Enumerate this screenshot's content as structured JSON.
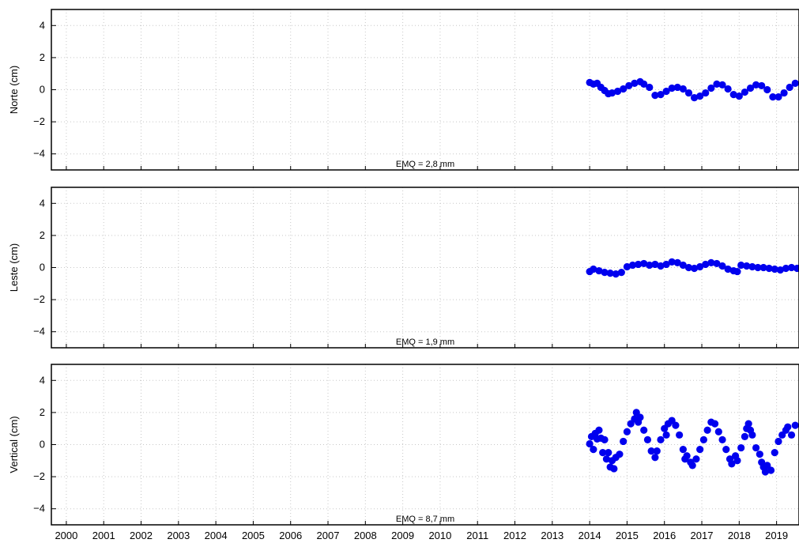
{
  "chart_data": [
    {
      "type": "scatter",
      "ylabel": "Norte (cm)",
      "ylim": [
        -5,
        5
      ],
      "yticks": [
        -4,
        -2,
        0,
        2,
        4
      ],
      "ytick_labels": [
        "−4",
        "−2",
        "0",
        "2",
        "4"
      ],
      "xlim": [
        1999.6,
        2019.6
      ],
      "grid": true,
      "annotation": "EMQ = 2,8 mm",
      "series": [
        {
          "color": "#0000ee",
          "points": [
            [
              2014.0,
              0.45
            ],
            [
              2014.1,
              0.35
            ],
            [
              2014.2,
              0.4
            ],
            [
              2014.3,
              0.15
            ],
            [
              2014.4,
              -0.05
            ],
            [
              2014.5,
              -0.25
            ],
            [
              2014.6,
              -0.2
            ],
            [
              2014.75,
              -0.1
            ],
            [
              2014.9,
              0.05
            ],
            [
              2015.05,
              0.25
            ],
            [
              2015.2,
              0.4
            ],
            [
              2015.35,
              0.5
            ],
            [
              2015.45,
              0.35
            ],
            [
              2015.6,
              0.15
            ],
            [
              2015.75,
              -0.35
            ],
            [
              2015.9,
              -0.3
            ],
            [
              2016.05,
              -0.1
            ],
            [
              2016.2,
              0.1
            ],
            [
              2016.35,
              0.15
            ],
            [
              2016.5,
              0.05
            ],
            [
              2016.65,
              -0.2
            ],
            [
              2016.8,
              -0.5
            ],
            [
              2016.95,
              -0.4
            ],
            [
              2017.1,
              -0.2
            ],
            [
              2017.25,
              0.1
            ],
            [
              2017.4,
              0.35
            ],
            [
              2017.55,
              0.3
            ],
            [
              2017.7,
              0.05
            ],
            [
              2017.85,
              -0.3
            ],
            [
              2018.0,
              -0.4
            ],
            [
              2018.15,
              -0.15
            ],
            [
              2018.3,
              0.1
            ],
            [
              2018.45,
              0.3
            ],
            [
              2018.6,
              0.25
            ],
            [
              2018.75,
              0.0
            ],
            [
              2018.9,
              -0.45
            ],
            [
              2019.05,
              -0.45
            ],
            [
              2019.2,
              -0.2
            ],
            [
              2019.35,
              0.15
            ],
            [
              2019.5,
              0.4
            ]
          ]
        }
      ]
    },
    {
      "type": "scatter",
      "ylabel": "Leste (cm)",
      "ylim": [
        -5,
        5
      ],
      "yticks": [
        -4,
        -2,
        0,
        2,
        4
      ],
      "ytick_labels": [
        "−4",
        "−2",
        "0",
        "2",
        "4"
      ],
      "xlim": [
        1999.6,
        2019.6
      ],
      "grid": true,
      "annotation": "EMQ = 1,9 mm",
      "series": [
        {
          "color": "#0000ee",
          "points": [
            [
              2014.0,
              -0.25
            ],
            [
              2014.1,
              -0.1
            ],
            [
              2014.25,
              -0.2
            ],
            [
              2014.4,
              -0.3
            ],
            [
              2014.55,
              -0.35
            ],
            [
              2014.7,
              -0.4
            ],
            [
              2014.85,
              -0.3
            ],
            [
              2015.0,
              0.05
            ],
            [
              2015.15,
              0.15
            ],
            [
              2015.3,
              0.2
            ],
            [
              2015.45,
              0.25
            ],
            [
              2015.6,
              0.15
            ],
            [
              2015.75,
              0.2
            ],
            [
              2015.9,
              0.1
            ],
            [
              2016.05,
              0.2
            ],
            [
              2016.2,
              0.35
            ],
            [
              2016.35,
              0.3
            ],
            [
              2016.5,
              0.15
            ],
            [
              2016.65,
              0.0
            ],
            [
              2016.8,
              -0.05
            ],
            [
              2016.95,
              0.05
            ],
            [
              2017.1,
              0.2
            ],
            [
              2017.25,
              0.3
            ],
            [
              2017.4,
              0.25
            ],
            [
              2017.55,
              0.1
            ],
            [
              2017.7,
              -0.1
            ],
            [
              2017.85,
              -0.2
            ],
            [
              2017.95,
              -0.25
            ],
            [
              2018.05,
              0.15
            ],
            [
              2018.2,
              0.1
            ],
            [
              2018.35,
              0.05
            ],
            [
              2018.5,
              0.0
            ],
            [
              2018.65,
              0.0
            ],
            [
              2018.8,
              -0.05
            ],
            [
              2018.95,
              -0.1
            ],
            [
              2019.1,
              -0.15
            ],
            [
              2019.25,
              -0.05
            ],
            [
              2019.4,
              0.0
            ],
            [
              2019.55,
              -0.05
            ]
          ]
        }
      ]
    },
    {
      "type": "scatter",
      "ylabel": "Vertical (cm)",
      "ylim": [
        -5,
        5
      ],
      "yticks": [
        -4,
        -2,
        0,
        2,
        4
      ],
      "ytick_labels": [
        "−4",
        "−2",
        "0",
        "2",
        "4"
      ],
      "xlim": [
        1999.6,
        2019.6
      ],
      "grid": true,
      "annotation": "EMQ = 8,7 mm",
      "xtick_labels": [
        "2000",
        "2001",
        "2002",
        "2003",
        "2004",
        "2005",
        "2006",
        "2007",
        "2008",
        "2009",
        "2010",
        "2011",
        "2012",
        "2013",
        "2014",
        "2015",
        "2016",
        "2017",
        "2018",
        "2019"
      ],
      "series": [
        {
          "color": "#0000ee",
          "points": [
            [
              2014.0,
              0.05
            ],
            [
              2014.05,
              0.5
            ],
            [
              2014.1,
              -0.3
            ],
            [
              2014.15,
              0.7
            ],
            [
              2014.2,
              0.35
            ],
            [
              2014.25,
              0.9
            ],
            [
              2014.3,
              0.4
            ],
            [
              2014.35,
              -0.5
            ],
            [
              2014.4,
              0.3
            ],
            [
              2014.45,
              -0.9
            ],
            [
              2014.5,
              -0.5
            ],
            [
              2014.55,
              -1.4
            ],
            [
              2014.6,
              -1.0
            ],
            [
              2014.65,
              -1.5
            ],
            [
              2014.7,
              -0.8
            ],
            [
              2014.8,
              -0.6
            ],
            [
              2014.9,
              0.2
            ],
            [
              2015.0,
              0.8
            ],
            [
              2015.1,
              1.3
            ],
            [
              2015.2,
              1.6
            ],
            [
              2015.25,
              2.0
            ],
            [
              2015.3,
              1.4
            ],
            [
              2015.35,
              1.7
            ],
            [
              2015.45,
              0.9
            ],
            [
              2015.55,
              0.3
            ],
            [
              2015.65,
              -0.4
            ],
            [
              2015.75,
              -0.8
            ],
            [
              2015.8,
              -0.4
            ],
            [
              2015.9,
              0.3
            ],
            [
              2016.0,
              1.0
            ],
            [
              2016.05,
              0.6
            ],
            [
              2016.1,
              1.3
            ],
            [
              2016.2,
              1.5
            ],
            [
              2016.3,
              1.2
            ],
            [
              2016.4,
              0.6
            ],
            [
              2016.5,
              -0.3
            ],
            [
              2016.55,
              -0.9
            ],
            [
              2016.6,
              -0.7
            ],
            [
              2016.7,
              -1.1
            ],
            [
              2016.75,
              -1.3
            ],
            [
              2016.85,
              -0.9
            ],
            [
              2016.95,
              -0.3
            ],
            [
              2017.05,
              0.3
            ],
            [
              2017.15,
              0.9
            ],
            [
              2017.25,
              1.4
            ],
            [
              2017.35,
              1.3
            ],
            [
              2017.45,
              0.8
            ],
            [
              2017.55,
              0.3
            ],
            [
              2017.65,
              -0.3
            ],
            [
              2017.75,
              -0.9
            ],
            [
              2017.8,
              -1.2
            ],
            [
              2017.9,
              -0.7
            ],
            [
              2017.95,
              -1.0
            ],
            [
              2018.05,
              -0.2
            ],
            [
              2018.15,
              0.5
            ],
            [
              2018.2,
              1.0
            ],
            [
              2018.25,
              1.3
            ],
            [
              2018.3,
              0.9
            ],
            [
              2018.35,
              0.6
            ],
            [
              2018.45,
              -0.2
            ],
            [
              2018.55,
              -0.6
            ],
            [
              2018.6,
              -1.1
            ],
            [
              2018.65,
              -1.4
            ],
            [
              2018.7,
              -1.7
            ],
            [
              2018.75,
              -1.3
            ],
            [
              2018.85,
              -1.6
            ],
            [
              2018.95,
              -0.5
            ],
            [
              2019.05,
              0.2
            ],
            [
              2019.15,
              0.6
            ],
            [
              2019.25,
              0.9
            ],
            [
              2019.3,
              1.1
            ],
            [
              2019.4,
              0.6
            ],
            [
              2019.5,
              1.2
            ]
          ]
        }
      ]
    }
  ]
}
